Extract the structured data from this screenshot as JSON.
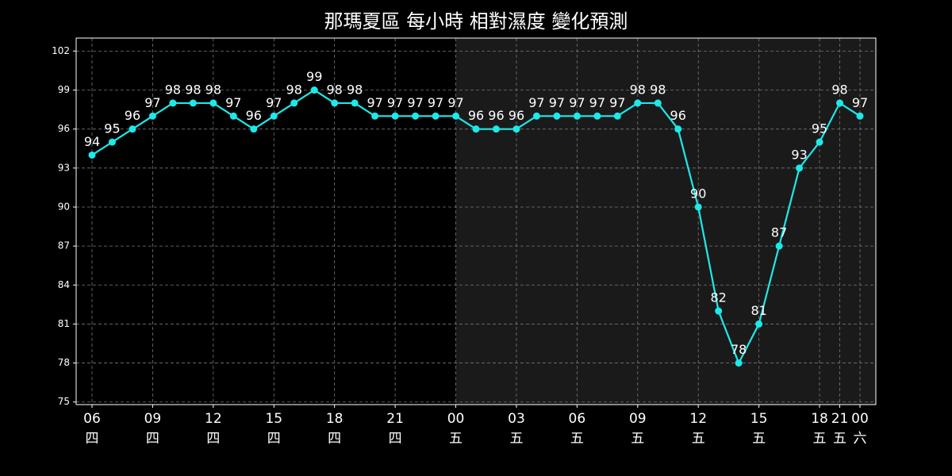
{
  "chart_data": {
    "type": "line",
    "title": "那瑪夏區 每小時 相對濕度 變化預測",
    "categories": [
      "06",
      null,
      null,
      "09",
      null,
      null,
      "12",
      null,
      null,
      "15",
      null,
      null,
      "18",
      null,
      null,
      "21",
      null,
      null,
      "00",
      null,
      null,
      "03",
      null,
      null,
      "06",
      null,
      null,
      "09",
      null,
      null,
      "12",
      null,
      null,
      "15",
      null,
      null,
      "18",
      "21",
      "00"
    ],
    "days": [
      "四",
      null,
      null,
      "四",
      null,
      null,
      "四",
      null,
      null,
      "四",
      null,
      null,
      "四",
      null,
      null,
      "四",
      null,
      null,
      "五",
      null,
      null,
      "五",
      null,
      null,
      "五",
      null,
      null,
      "五",
      null,
      null,
      "五",
      null,
      null,
      "五",
      null,
      null,
      "五",
      "五",
      "六"
    ],
    "series": [
      {
        "name": "相對濕度",
        "color": "#1de9e9",
        "values": [
          94,
          95,
          96,
          97,
          98,
          98,
          98,
          97,
          96,
          97,
          98,
          99,
          98,
          98,
          97,
          97,
          97,
          97,
          97,
          96,
          96,
          96,
          97,
          97,
          97,
          97,
          97,
          98,
          98,
          96,
          90,
          82,
          78,
          81,
          87,
          93,
          95,
          98,
          97
        ]
      }
    ],
    "ylim": [
      74.8,
      103
    ],
    "yticks": [
      75,
      78,
      81,
      84,
      87,
      90,
      93,
      96,
      99,
      102
    ],
    "grid": true,
    "shade": {
      "from": 18,
      "color": "#1a1a1a"
    }
  }
}
